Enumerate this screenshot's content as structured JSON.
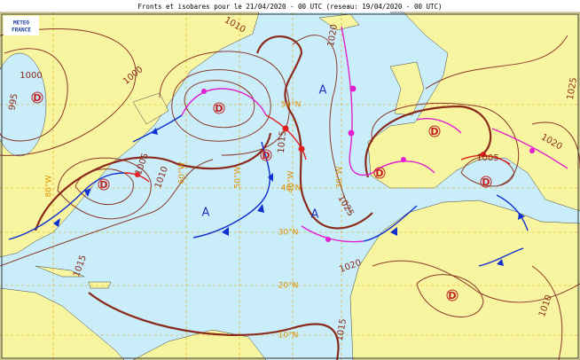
{
  "header": {
    "title": "Fronts et isobares pour le 21/04/2020 - 00 UTC (reseau: 19/04/2020 - 00 UTC)",
    "logo_top": "METEO",
    "logo_bottom": "FRANCE"
  },
  "lows": [
    "D",
    "D",
    "D",
    "D",
    "D",
    "D",
    "D",
    "D"
  ],
  "highs": [
    "A",
    "A",
    "A"
  ],
  "isobar_labels": [
    "1000",
    "995",
    "1000",
    "1010",
    "1005",
    "1010",
    "1015",
    "1020",
    "1025",
    "1015",
    "1020",
    "1005",
    "1025",
    "1020",
    "1015",
    "1010"
  ],
  "grid_labels": [
    "10°N",
    "20°N",
    "30°N",
    "40°N",
    "50°N",
    "80°W",
    "60°W",
    "50°W",
    "40°W",
    "30°W"
  ]
}
